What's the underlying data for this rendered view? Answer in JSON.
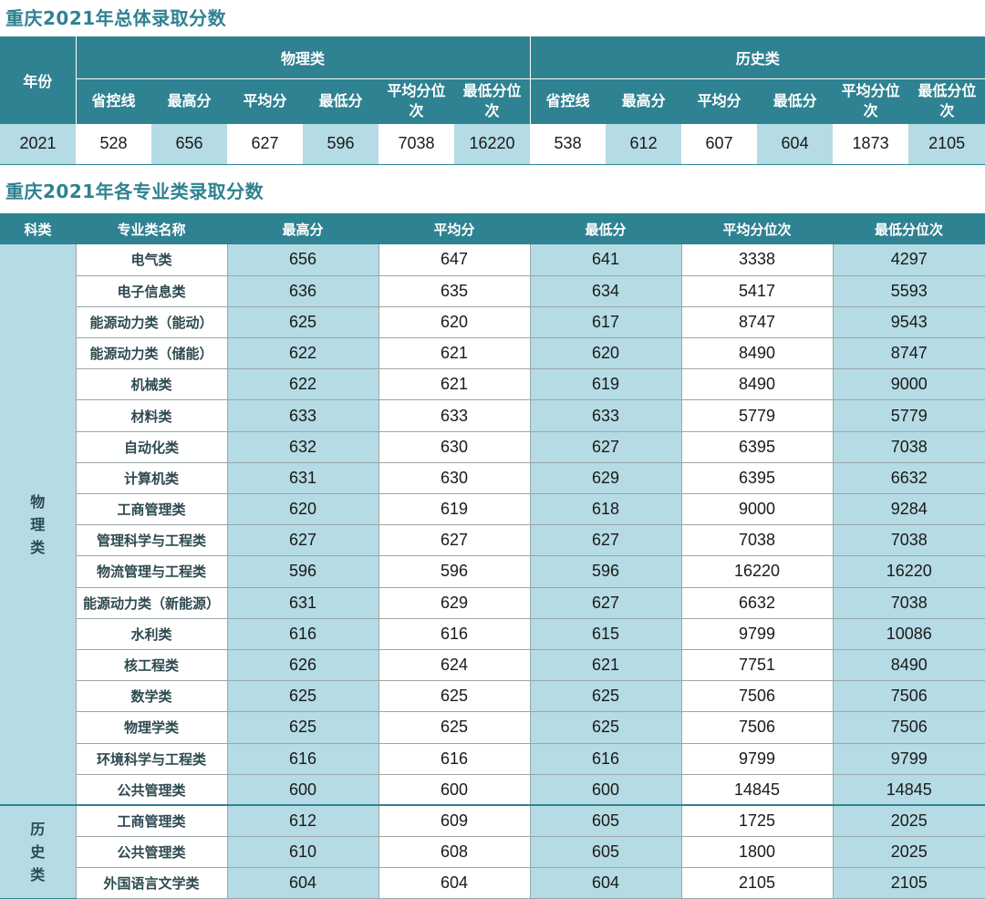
{
  "section1": {
    "title": "重庆2021年总体录取分数",
    "year_header": "年份",
    "groups": [
      "物理类",
      "历史类"
    ],
    "sub_headers": [
      "省控线",
      "最高分",
      "平均分",
      "最低分",
      "平均分位次",
      "最低分位次"
    ],
    "row": {
      "year": "2021",
      "physics": [
        "528",
        "656",
        "627",
        "596",
        "7038",
        "16220"
      ],
      "history": [
        "538",
        "612",
        "607",
        "604",
        "1873",
        "2105"
      ]
    }
  },
  "section2": {
    "title": "重庆2021年各专业类录取分数",
    "headers": [
      "科类",
      "专业类名称",
      "最高分",
      "平均分",
      "最低分",
      "平均分位次",
      "最低分位次"
    ],
    "groups": [
      {
        "category": "物理类",
        "rows": [
          [
            "电气类",
            "656",
            "647",
            "641",
            "3338",
            "4297"
          ],
          [
            "电子信息类",
            "636",
            "635",
            "634",
            "5417",
            "5593"
          ],
          [
            "能源动力类（能动）",
            "625",
            "620",
            "617",
            "8747",
            "9543"
          ],
          [
            "能源动力类（储能）",
            "622",
            "621",
            "620",
            "8490",
            "8747"
          ],
          [
            "机械类",
            "622",
            "621",
            "619",
            "8490",
            "9000"
          ],
          [
            "材料类",
            "633",
            "633",
            "633",
            "5779",
            "5779"
          ],
          [
            "自动化类",
            "632",
            "630",
            "627",
            "6395",
            "7038"
          ],
          [
            "计算机类",
            "631",
            "630",
            "629",
            "6395",
            "6632"
          ],
          [
            "工商管理类",
            "620",
            "619",
            "618",
            "9000",
            "9284"
          ],
          [
            "管理科学与工程类",
            "627",
            "627",
            "627",
            "7038",
            "7038"
          ],
          [
            "物流管理与工程类",
            "596",
            "596",
            "596",
            "16220",
            "16220"
          ],
          [
            "能源动力类（新能源）",
            "631",
            "629",
            "627",
            "6632",
            "7038"
          ],
          [
            "水利类",
            "616",
            "616",
            "615",
            "9799",
            "10086"
          ],
          [
            "核工程类",
            "626",
            "624",
            "621",
            "7751",
            "8490"
          ],
          [
            "数学类",
            "625",
            "625",
            "625",
            "7506",
            "7506"
          ],
          [
            "物理学类",
            "625",
            "625",
            "625",
            "7506",
            "7506"
          ],
          [
            "环境科学与工程类",
            "616",
            "616",
            "616",
            "9799",
            "9799"
          ],
          [
            "公共管理类",
            "600",
            "600",
            "600",
            "14845",
            "14845"
          ]
        ]
      },
      {
        "category": "历史类",
        "rows": [
          [
            "工商管理类",
            "612",
            "609",
            "605",
            "1725",
            "2025"
          ],
          [
            "公共管理类",
            "610",
            "608",
            "605",
            "1800",
            "2025"
          ],
          [
            "外国语言文学类",
            "604",
            "604",
            "604",
            "2105",
            "2105"
          ]
        ]
      }
    ]
  }
}
